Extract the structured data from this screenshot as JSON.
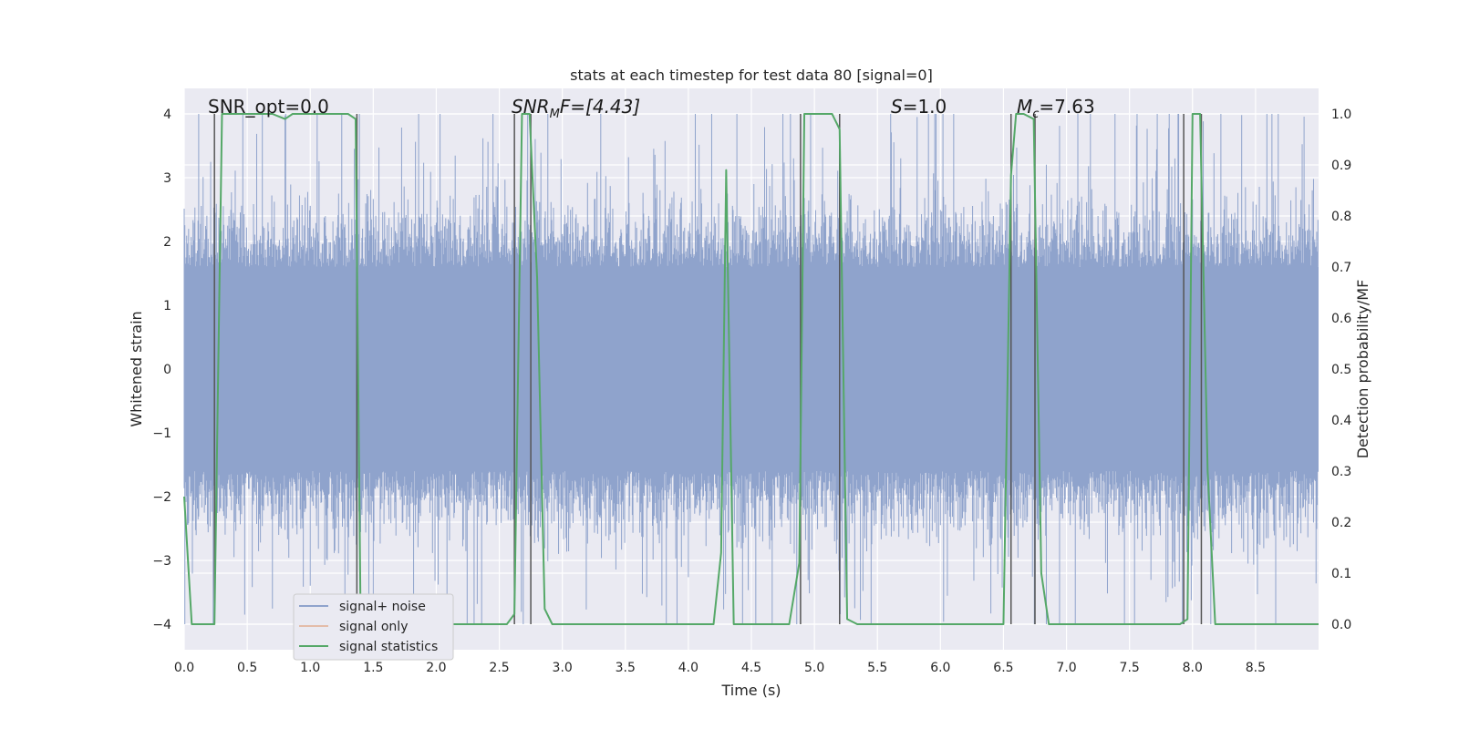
{
  "chart_data": {
    "type": "line",
    "title": "stats at each timestep for test data 80 [signal=0]",
    "xlabel": "Time (s)",
    "ylabel_left": "Whitened strain",
    "ylabel_right": "Detection probability/MF",
    "xlim": [
      0.0,
      9.0
    ],
    "ylim_left": [
      -4.4,
      4.4
    ],
    "ylim_right": [
      -0.05,
      1.05
    ],
    "xticks": [
      0.0,
      0.5,
      1.0,
      1.5,
      2.0,
      2.5,
      3.0,
      3.5,
      4.0,
      4.5,
      5.0,
      5.5,
      6.0,
      6.5,
      7.0,
      7.5,
      8.0,
      8.5
    ],
    "xtick_labels": [
      "0.0",
      "0.5",
      "1.0",
      "1.5",
      "2.0",
      "2.5",
      "3.0",
      "3.5",
      "4.0",
      "4.5",
      "5.0",
      "5.5",
      "6.0",
      "6.5",
      "7.0",
      "7.5",
      "8.0",
      "8.5"
    ],
    "yticks_left": [
      4,
      3,
      2,
      1,
      0,
      -1,
      -2,
      -3,
      -4
    ],
    "ytick_labels_left": [
      "4",
      "3",
      "2",
      "1",
      "0",
      "−1",
      "−2",
      "−3",
      "−4"
    ],
    "yticks_right": [
      1.0,
      0.9,
      0.8,
      0.7,
      0.6,
      0.5,
      0.4,
      0.3,
      0.2,
      0.1,
      0.0
    ],
    "ytick_labels_right": [
      "1.0",
      "0.9",
      "0.8",
      "0.7",
      "0.6",
      "0.5",
      "0.4",
      "0.3",
      "0.2",
      "0.1",
      "0.0"
    ],
    "grid": true,
    "legend_position": "lower-left",
    "legend": [
      "signal+ noise",
      "signal only",
      "signal statistics"
    ],
    "annotations": {
      "snr_opt": "SNR_opt=0.0",
      "snr_mf_base": "SNR",
      "snr_mf_sub": "M",
      "snr_mf_rest": "F=[4.43]",
      "s_sym": "S",
      "s_rest": "=1.0",
      "mc_sym": "M",
      "mc_sub": "c",
      "mc_rest": "=7.63"
    },
    "noise": {
      "description_level": "random whitened strain",
      "dense_band": [
        -1.6,
        1.6
      ],
      "max_abs": 4.0,
      "seed": 80
    },
    "series_signal_statistics": {
      "name": "signal statistics",
      "color": "#55a868",
      "x": [
        0.0,
        0.06,
        0.12,
        0.18,
        0.24,
        0.3,
        0.4,
        0.5,
        0.6,
        0.7,
        0.8,
        0.86,
        0.9,
        1.0,
        1.1,
        1.2,
        1.3,
        1.36,
        1.4,
        1.44,
        1.5,
        1.6,
        2.0,
        2.4,
        2.56,
        2.62,
        2.68,
        2.74,
        2.8,
        2.86,
        2.92,
        3.0,
        3.2,
        3.4,
        3.8,
        4.2,
        4.26,
        4.3,
        4.36,
        4.4,
        4.5,
        4.6,
        4.8,
        4.88,
        4.92,
        4.98,
        5.06,
        5.14,
        5.2,
        5.26,
        5.34,
        5.5,
        6.0,
        6.5,
        6.56,
        6.6,
        6.66,
        6.74,
        6.8,
        6.86,
        7.0,
        7.2,
        7.5,
        7.9,
        7.96,
        8.0,
        8.06,
        8.12,
        8.18,
        8.3,
        8.6,
        9.0
      ],
      "values": [
        0.25,
        0.0,
        0.0,
        0.0,
        0.0,
        1.0,
        1.0,
        1.0,
        1.0,
        1.0,
        0.99,
        1.0,
        1.0,
        1.0,
        1.0,
        1.0,
        1.0,
        0.99,
        0.0,
        0.0,
        0.0,
        0.0,
        0.0,
        0.0,
        0.0,
        0.02,
        1.0,
        1.0,
        0.68,
        0.03,
        0.0,
        0.0,
        0.0,
        0.0,
        0.0,
        0.0,
        0.14,
        0.89,
        0.0,
        0.0,
        0.0,
        0.0,
        0.0,
        0.12,
        1.0,
        1.0,
        1.0,
        1.0,
        0.97,
        0.01,
        0.0,
        0.0,
        0.0,
        0.0,
        0.88,
        1.0,
        1.0,
        0.99,
        0.1,
        0.0,
        0.0,
        0.0,
        0.0,
        0.0,
        0.01,
        1.0,
        1.0,
        0.3,
        0.0,
        0.0,
        0.0,
        0.0
      ]
    },
    "vertical_markers_x": [
      0.24,
      1.37,
      2.62,
      2.75,
      4.89,
      5.2,
      6.56,
      6.75,
      7.93,
      8.07
    ]
  },
  "colors": {
    "plot_bg": "#eaeaf2",
    "grid": "#ffffff",
    "noise": "#8fa3cc",
    "signal_only": "#dd8452",
    "stats": "#55a868",
    "marker": "#555555"
  }
}
